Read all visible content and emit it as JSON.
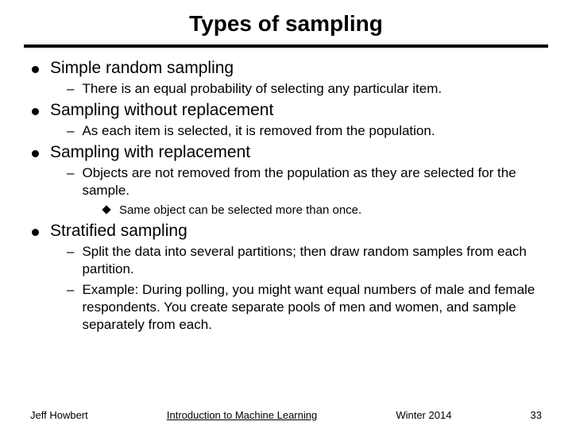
{
  "title": "Types of sampling",
  "items": {
    "b1": "Simple random sampling",
    "b1s1": "There is an equal probability of selecting any particular item.",
    "b2": "Sampling without replacement",
    "b2s1": "As each item is selected, it is removed from the population.",
    "b3": "Sampling with replacement",
    "b3s1": "Objects are not removed from the population as they are selected for the sample.",
    "b3s1a": "Same object can be selected more than once.",
    "b4": "Stratified sampling",
    "b4s1": "Split the data into several partitions; then draw random samples from each partition.",
    "b4s2": "Example: During polling, you might want equal numbers of male and female respondents.  You create separate pools of men and women, and sample separately from each."
  },
  "footer": {
    "left": "Jeff Howbert",
    "center": "Introduction to Machine Learning",
    "right": "Winter 2014",
    "page": "33"
  },
  "colors": {
    "background": "#ffffff",
    "text": "#000000",
    "rule": "#000000"
  }
}
